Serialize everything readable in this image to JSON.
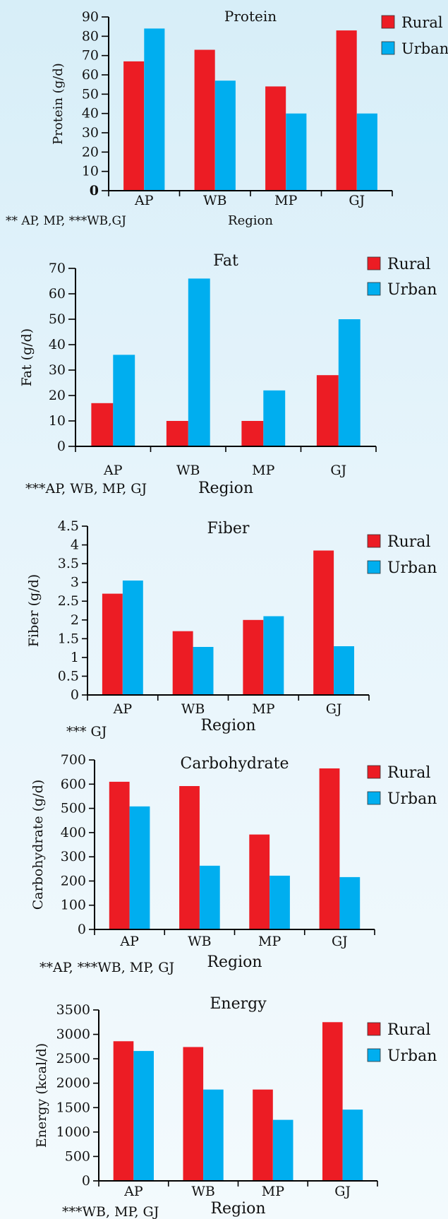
{
  "colors": {
    "rural": "#ec1c24",
    "urban": "#00aeef",
    "axis": "#000000"
  },
  "chart_data": [
    {
      "type": "bar",
      "title": "Protein",
      "xlabel": "Region",
      "ylabel": "Protein (g/d)",
      "categories": [
        "AP",
        "WB",
        "MP",
        "GJ"
      ],
      "series": [
        {
          "name": "Rural",
          "values": [
            67,
            73,
            54,
            83
          ]
        },
        {
          "name": "Urban",
          "values": [
            84,
            57,
            40,
            40
          ]
        }
      ],
      "ylim": [
        0,
        90
      ],
      "yticks": [
        0,
        10,
        20,
        30,
        40,
        50,
        60,
        70,
        80,
        90
      ],
      "ytick_labels": [
        "0",
        "10",
        "20",
        "30",
        "40",
        "50",
        "60",
        "70",
        "80",
        "90"
      ],
      "legend_position": "top-right",
      "note": "** AP, MP, ***WB,GJ"
    },
    {
      "type": "bar",
      "title": "Fat",
      "xlabel": "Region",
      "ylabel": "Fat (g/d)",
      "categories": [
        "AP",
        "WB",
        "MP",
        "GJ"
      ],
      "series": [
        {
          "name": "Rural",
          "values": [
            17,
            10,
            10,
            28
          ]
        },
        {
          "name": "Urban",
          "values": [
            36,
            66,
            22,
            50
          ]
        }
      ],
      "ylim": [
        0,
        70
      ],
      "yticks": [
        0,
        10,
        20,
        30,
        40,
        50,
        60,
        70
      ],
      "ytick_labels": [
        "0",
        "10",
        "20",
        "30",
        "40",
        "50",
        "60",
        "70"
      ],
      "legend_position": "top-right",
      "note": "***AP, WB, MP, GJ"
    },
    {
      "type": "bar",
      "title": "Fiber",
      "xlabel": "Region",
      "ylabel": "Fiber (g/d)",
      "categories": [
        "AP",
        "WB",
        "MP",
        "GJ"
      ],
      "series": [
        {
          "name": "Rural",
          "values": [
            2.7,
            1.7,
            2.0,
            3.85
          ]
        },
        {
          "name": "Urban",
          "values": [
            3.05,
            1.28,
            2.1,
            1.3
          ]
        }
      ],
      "ylim": [
        0,
        4.5
      ],
      "yticks": [
        0,
        0.5,
        1,
        1.5,
        2,
        2.5,
        3,
        3.5,
        4,
        4.5
      ],
      "ytick_labels": [
        "0",
        "0.5",
        "1",
        "1.5",
        "2",
        "2.5",
        "3",
        "3.5",
        "4",
        "4.5"
      ],
      "legend_position": "top-right",
      "note": "*** GJ"
    },
    {
      "type": "bar",
      "title": "Carbohydrate",
      "xlabel": "Region",
      "ylabel": "Carbohydrate (g/d)",
      "categories": [
        "AP",
        "WB",
        "MP",
        "GJ"
      ],
      "series": [
        {
          "name": "Rural",
          "values": [
            610,
            592,
            392,
            665
          ]
        },
        {
          "name": "Urban",
          "values": [
            508,
            263,
            222,
            216
          ]
        }
      ],
      "ylim": [
        0,
        700
      ],
      "yticks": [
        0,
        100,
        200,
        300,
        400,
        500,
        600,
        700
      ],
      "ytick_labels": [
        "0",
        "100",
        "200",
        "300",
        "400",
        "500",
        "600",
        "700"
      ],
      "legend_position": "top-right",
      "note": "**AP, ***WB, MP, GJ"
    },
    {
      "type": "bar",
      "title": "Energy",
      "xlabel": "Region",
      "ylabel": "Energy (kcal/d)",
      "categories": [
        "AP",
        "WB",
        "MP",
        "GJ"
      ],
      "series": [
        {
          "name": "Rural",
          "values": [
            2860,
            2740,
            1870,
            3250
          ]
        },
        {
          "name": "Urban",
          "values": [
            2660,
            1870,
            1250,
            1460
          ]
        }
      ],
      "ylim": [
        0,
        3500
      ],
      "yticks": [
        0,
        500,
        1000,
        1500,
        2000,
        2500,
        3000,
        3500
      ],
      "ytick_labels": [
        "0",
        "500",
        "1000",
        "1500",
        "2000",
        "2500",
        "3000",
        "3500"
      ],
      "legend_position": "top-right",
      "note": "***WB, MP, GJ"
    }
  ]
}
